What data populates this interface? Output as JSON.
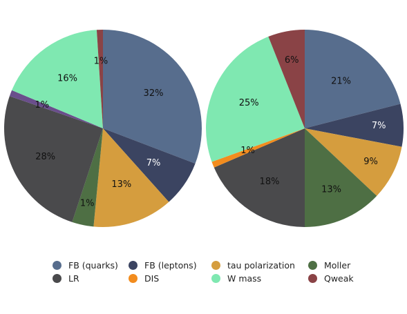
{
  "chart_data": [
    {
      "type": "pie",
      "slices": [
        {
          "name": "FB (quarks)",
          "value": 32,
          "label": "32%"
        },
        {
          "name": "FB (leptons)",
          "value": 7,
          "label": "7%"
        },
        {
          "name": "tau polarization",
          "value": 13,
          "label": "13%"
        },
        {
          "name": "Moller",
          "value": 1,
          "label": "1%"
        },
        {
          "name": "LR",
          "value": 28,
          "label": "28%"
        },
        {
          "name": "DIS",
          "value": 0,
          "label": ""
        },
        {
          "name": "W mass",
          "value": 16,
          "label": "16%"
        },
        {
          "name": "Qweak",
          "value": 1,
          "label": "1%"
        }
      ],
      "extra_labels": [
        {
          "label": "1%"
        }
      ]
    },
    {
      "type": "pie",
      "slices": [
        {
          "name": "FB (quarks)",
          "value": 21,
          "label": "21%"
        },
        {
          "name": "FB (leptons)",
          "value": 7,
          "label": "7%"
        },
        {
          "name": "tau polarization",
          "value": 9,
          "label": "9%"
        },
        {
          "name": "Moller",
          "value": 13,
          "label": "13%"
        },
        {
          "name": "LR",
          "value": 18,
          "label": "18%"
        },
        {
          "name": "DIS",
          "value": 1,
          "label": "1%"
        },
        {
          "name": "W mass",
          "value": 25,
          "label": "25%"
        },
        {
          "name": "Qweak",
          "value": 6,
          "label": "6%"
        }
      ]
    }
  ],
  "legend": [
    {
      "name": "FB (quarks)",
      "color": "#576d8d"
    },
    {
      "name": "FB (leptons)",
      "color": "#3b4461"
    },
    {
      "name": "tau polarization",
      "color": "#d59d3e"
    },
    {
      "name": "Moller",
      "color": "#4e6f44"
    },
    {
      "name": "LR",
      "color": "#4a4a4c"
    },
    {
      "name": "DIS",
      "color": "#f28c1e"
    },
    {
      "name": "W mass",
      "color": "#7fe8b1"
    },
    {
      "name": "Qweak",
      "color": "#8a4346"
    }
  ],
  "colors": {
    "FB (quarks)": "#576d8d",
    "FB (leptons)": "#3b4461",
    "tau polarization": "#d59d3e",
    "Moller": "#4e6f44",
    "LR": "#4a4a4c",
    "DIS": "#f28c1e",
    "W mass": "#7fe8b1",
    "Qweak": "#8a4346",
    "extra": "#6a4e8c"
  }
}
